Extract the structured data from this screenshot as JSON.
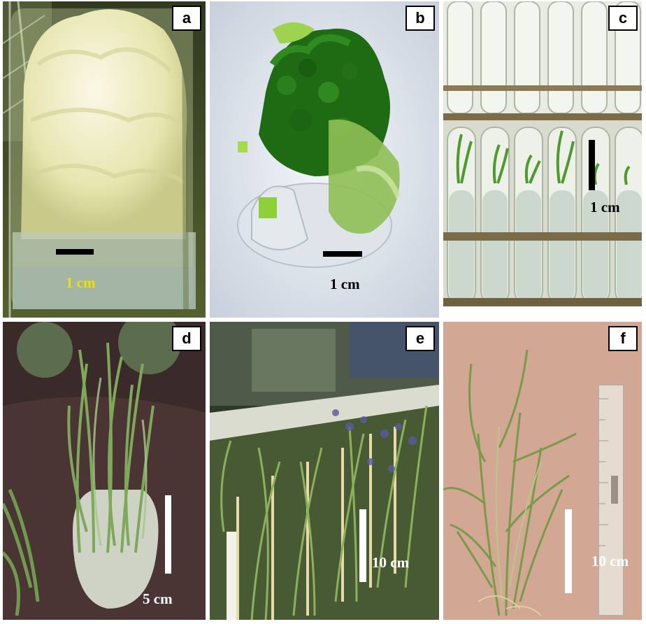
{
  "panels": [
    {
      "label": "a",
      "scale": "1 cm",
      "scale_color": "#f2e000",
      "bar_color": "#000000"
    },
    {
      "label": "b",
      "scale": "1 cm",
      "scale_color": "#000000",
      "bar_color": "#000000"
    },
    {
      "label": "c",
      "scale": "1 cm",
      "scale_color": "#000000",
      "bar_color": "#000000"
    },
    {
      "label": "d",
      "scale": "5 cm",
      "scale_color": "#ffffff",
      "bar_color": "#ffffff"
    },
    {
      "label": "e",
      "scale": "10 cm",
      "scale_color": "#ffffff",
      "bar_color": "#ffffff"
    },
    {
      "label": "f",
      "scale": "10 cm",
      "scale_color": "#ffffff",
      "bar_color": "#ffffff"
    }
  ]
}
